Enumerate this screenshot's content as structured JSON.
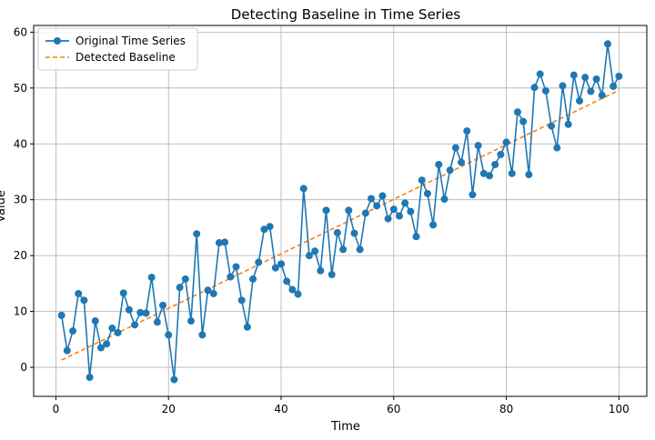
{
  "chart_data": {
    "type": "line",
    "title": "Detecting Baseline in Time Series",
    "xlabel": "Time",
    "ylabel": "Value",
    "xlim": [
      -3.95,
      104.95
    ],
    "ylim": [
      -5.2,
      61.2
    ],
    "xticks": [
      0,
      20,
      40,
      60,
      80,
      100
    ],
    "yticks": [
      0,
      10,
      20,
      30,
      40,
      50,
      60
    ],
    "grid": true,
    "legend_position": "top-left",
    "colors": {
      "series": "#1f77b4",
      "baseline": "#ff7f0e",
      "grid": "#b0b0b0",
      "axis": "#000000"
    },
    "series": [
      {
        "name": "Original Time Series",
        "style": "line-with-circle-markers",
        "x": [
          1,
          2,
          3,
          4,
          5,
          6,
          7,
          8,
          9,
          10,
          11,
          12,
          13,
          14,
          15,
          16,
          17,
          18,
          19,
          20,
          21,
          22,
          23,
          24,
          25,
          26,
          27,
          28,
          29,
          30,
          31,
          32,
          33,
          34,
          35,
          36,
          37,
          38,
          39,
          40,
          41,
          42,
          43,
          44,
          45,
          46,
          47,
          48,
          49,
          50,
          51,
          52,
          53,
          54,
          55,
          56,
          57,
          58,
          59,
          60,
          61,
          62,
          63,
          64,
          65,
          66,
          67,
          68,
          69,
          70,
          71,
          72,
          73,
          74,
          75,
          76,
          77,
          78,
          79,
          80,
          81,
          82,
          83,
          84,
          85,
          86,
          87,
          88,
          89,
          90,
          91,
          92,
          93,
          94,
          95,
          96,
          97,
          98,
          99,
          100
        ],
        "y": [
          9.3,
          3.0,
          6.5,
          13.2,
          12.0,
          -1.8,
          8.3,
          3.5,
          4.2,
          7.0,
          6.2,
          13.3,
          10.3,
          7.6,
          9.8,
          9.7,
          16.1,
          8.1,
          11.1,
          5.8,
          -2.2,
          14.3,
          15.8,
          8.3,
          23.9,
          5.8,
          13.8,
          13.2,
          22.3,
          22.4,
          16.2,
          18.0,
          12.0,
          7.2,
          15.8,
          18.8,
          24.7,
          25.2,
          17.8,
          18.5,
          15.4,
          13.9,
          13.1,
          32.0,
          20.0,
          20.8,
          17.3,
          28.1,
          16.6,
          24.1,
          21.1,
          28.1,
          24.0,
          21.1,
          27.6,
          30.2,
          28.9,
          30.7,
          26.6,
          28.3,
          27.1,
          29.4,
          27.9,
          23.4,
          33.5,
          31.1,
          25.5,
          36.3,
          30.1,
          35.3,
          39.3,
          36.7,
          42.3,
          30.9,
          39.7,
          34.7,
          34.3,
          36.3,
          38.1,
          40.3,
          34.7,
          45.7,
          44.0,
          34.5,
          50.1,
          52.5,
          49.5,
          43.2,
          39.3,
          50.4,
          43.5,
          52.3,
          47.7,
          51.9,
          49.4,
          51.6,
          48.7,
          57.9,
          50.3,
          52.1
        ]
      },
      {
        "name": "Detected Baseline",
        "style": "dashed-line",
        "x": [
          1,
          100
        ],
        "y": [
          1.3,
          49.6
        ]
      }
    ]
  }
}
